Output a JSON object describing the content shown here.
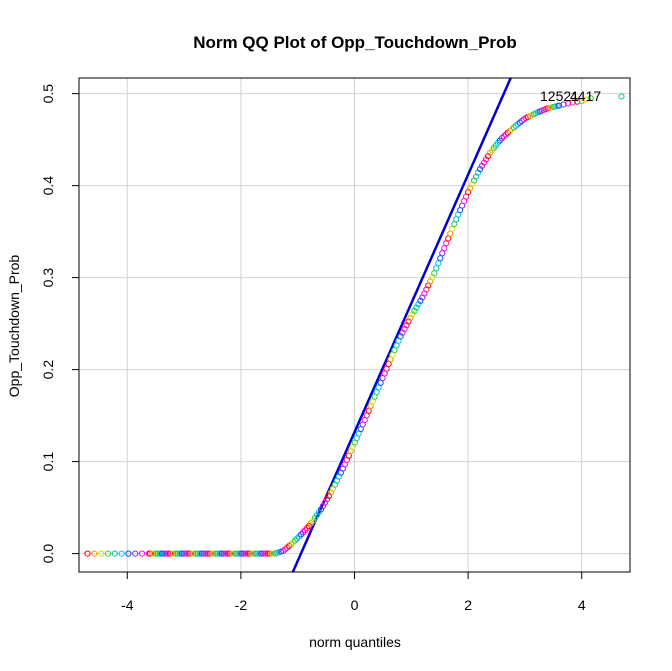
{
  "chart_data": {
    "type": "scatter",
    "title": "Norm QQ Plot of Opp_Touchdown_Prob",
    "xlabel": "norm quantiles",
    "ylabel": "Opp_Touchdown_Prob",
    "xlim": [
      -4.85,
      4.85
    ],
    "ylim": [
      -0.02,
      0.517
    ],
    "x_ticks": [
      -4,
      -2,
      0,
      2,
      4
    ],
    "y_ticks": [
      0.0,
      0.1,
      0.2,
      0.3,
      0.4,
      0.5
    ],
    "x_tick_labels": [
      "-4",
      "-2",
      "0",
      "2",
      "4"
    ],
    "y_tick_labels": [
      "0.0",
      "0.1",
      "0.2",
      "0.3",
      "0.4",
      "0.5"
    ],
    "grid": true,
    "point_labels": [
      "12521",
      "4417"
    ],
    "reference_line": {
      "intercept": 0.132,
      "slope": 0.14,
      "color": "#0000cd"
    },
    "quantile_curve": {
      "x": [
        -4.7,
        -4.0,
        -3.0,
        -2.0,
        -1.4,
        -1.25,
        -1.1,
        -1.0,
        -0.8,
        -0.6,
        -0.4,
        -0.2,
        0.0,
        0.2,
        0.4,
        0.6,
        0.8,
        1.0,
        1.2,
        1.4,
        1.6,
        1.8,
        2.0,
        2.2,
        2.4,
        2.6,
        2.8,
        3.0,
        3.2,
        3.4,
        3.6,
        3.8,
        4.0,
        4.15,
        4.7
      ],
      "y": [
        0.0,
        0.0,
        0.0,
        0.0,
        0.0,
        0.003,
        0.011,
        0.017,
        0.03,
        0.047,
        0.068,
        0.093,
        0.12,
        0.148,
        0.177,
        0.206,
        0.235,
        0.258,
        0.279,
        0.304,
        0.335,
        0.365,
        0.393,
        0.417,
        0.437,
        0.452,
        0.463,
        0.473,
        0.479,
        0.484,
        0.487,
        0.49,
        0.492,
        0.495,
        0.497
      ]
    },
    "point_colors": [
      "#ff0000",
      "#ff8c00",
      "#c8e600",
      "#32cd32",
      "#00c8a0",
      "#00bfff",
      "#0050ff",
      "#8a2be2",
      "#ff00ff",
      "#ff1493"
    ]
  }
}
